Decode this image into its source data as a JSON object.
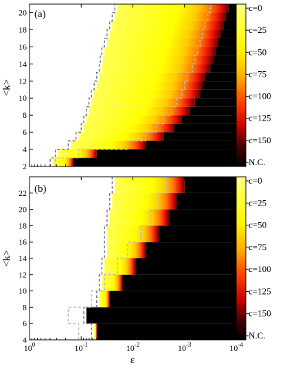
{
  "chart_data": [
    {
      "panel_label": "(a)",
      "type": "heatmap",
      "xlabel": "ε",
      "ylabel": "<k>",
      "x_scale": "log",
      "x_ticks": [
        "10^0",
        "10^-1",
        "10^-2",
        "10^-3",
        "10^-4"
      ],
      "xlim_log10": [
        0,
        -4
      ],
      "ylim": [
        2,
        21
      ],
      "y_ticks": [
        2,
        4,
        6,
        8,
        10,
        12,
        14,
        16,
        18,
        20
      ],
      "colorbar": {
        "labels": [
          "c=0",
          "c=25",
          "c=50",
          "c=75",
          "c=100",
          "c=125",
          "c=150",
          "N.C."
        ],
        "legend_position": "right"
      },
      "colored_region_by_k": [
        {
          "k": 2.5,
          "eps_log10_left": -0.45,
          "eps_log10_right": -0.85
        },
        {
          "k": 3.5,
          "eps_log10_left": -0.55,
          "eps_log10_right": -1.3
        },
        {
          "k": 4.5,
          "eps_log10_left": -0.8,
          "eps_log10_right": -2.25
        },
        {
          "k": 5.5,
          "eps_log10_left": -0.95,
          "eps_log10_right": -2.6
        },
        {
          "k": 6.5,
          "eps_log10_left": -1.05,
          "eps_log10_right": -2.8
        },
        {
          "k": 7.5,
          "eps_log10_left": -1.1,
          "eps_log10_right": -2.95
        },
        {
          "k": 8.5,
          "eps_log10_left": -1.15,
          "eps_log10_right": -3.1
        },
        {
          "k": 9.5,
          "eps_log10_left": -1.2,
          "eps_log10_right": -3.2
        },
        {
          "k": 10.5,
          "eps_log10_left": -1.25,
          "eps_log10_right": -3.3
        },
        {
          "k": 11.5,
          "eps_log10_left": -1.3,
          "eps_log10_right": -3.35
        },
        {
          "k": 12.5,
          "eps_log10_left": -1.35,
          "eps_log10_right": -3.4
        },
        {
          "k": 13.5,
          "eps_log10_left": -1.4,
          "eps_log10_right": -3.5
        },
        {
          "k": 14.5,
          "eps_log10_left": -1.42,
          "eps_log10_right": -3.55
        },
        {
          "k": 15.5,
          "eps_log10_left": -1.45,
          "eps_log10_right": -3.6
        },
        {
          "k": 16.5,
          "eps_log10_left": -1.5,
          "eps_log10_right": -3.65
        },
        {
          "k": 17.5,
          "eps_log10_left": -1.55,
          "eps_log10_right": -3.7
        },
        {
          "k": 18.5,
          "eps_log10_left": -1.6,
          "eps_log10_right": -3.75
        },
        {
          "k": 19.5,
          "eps_log10_left": -1.65,
          "eps_log10_right": -3.8
        },
        {
          "k": 20.5,
          "eps_log10_left": -1.7,
          "eps_log10_right": -3.85
        }
      ]
    },
    {
      "panel_label": "(b)",
      "type": "heatmap",
      "xlabel": "ε",
      "ylabel": "<k>",
      "x_scale": "log",
      "x_ticks": [
        "10^0",
        "10^-1",
        "10^-2",
        "10^-3",
        "10^-4"
      ],
      "xlim_log10": [
        0,
        -4
      ],
      "ylim": [
        4,
        24
      ],
      "y_ticks": [
        4,
        6,
        8,
        10,
        12,
        14,
        16,
        18,
        20,
        22
      ],
      "colorbar": {
        "labels": [
          "c=0",
          "c=25",
          "c=50",
          "c=75",
          "c=100",
          "c=125",
          "c=150",
          "N.C."
        ],
        "legend_position": "right"
      },
      "colored_region_by_k": [
        {
          "k": 5,
          "eps_log10_left": -1.25,
          "eps_log10_right": -1.3
        },
        {
          "k": 7,
          "eps_log10_left": -1.1,
          "eps_log10_right": -1.1
        },
        {
          "k": 9,
          "eps_log10_left": -1.35,
          "eps_log10_right": -1.55
        },
        {
          "k": 11,
          "eps_log10_left": -1.4,
          "eps_log10_right": -1.8
        },
        {
          "k": 13,
          "eps_log10_left": -1.45,
          "eps_log10_right": -2.05
        },
        {
          "k": 15,
          "eps_log10_left": -1.5,
          "eps_log10_right": -2.25
        },
        {
          "k": 17,
          "eps_log10_left": -1.5,
          "eps_log10_right": -2.5
        },
        {
          "k": 19,
          "eps_log10_left": -1.55,
          "eps_log10_right": -2.7
        },
        {
          "k": 21,
          "eps_log10_left": -1.6,
          "eps_log10_right": -2.85
        },
        {
          "k": 23,
          "eps_log10_left": -1.65,
          "eps_log10_right": -3.0
        }
      ]
    }
  ],
  "colors": {
    "background_nc": "#000000",
    "gradient": [
      "#ffff66",
      "#ffff00",
      "#ffcc00",
      "#ff7700",
      "#ff2200",
      "#aa0000",
      "#330000",
      "#000000"
    ]
  }
}
